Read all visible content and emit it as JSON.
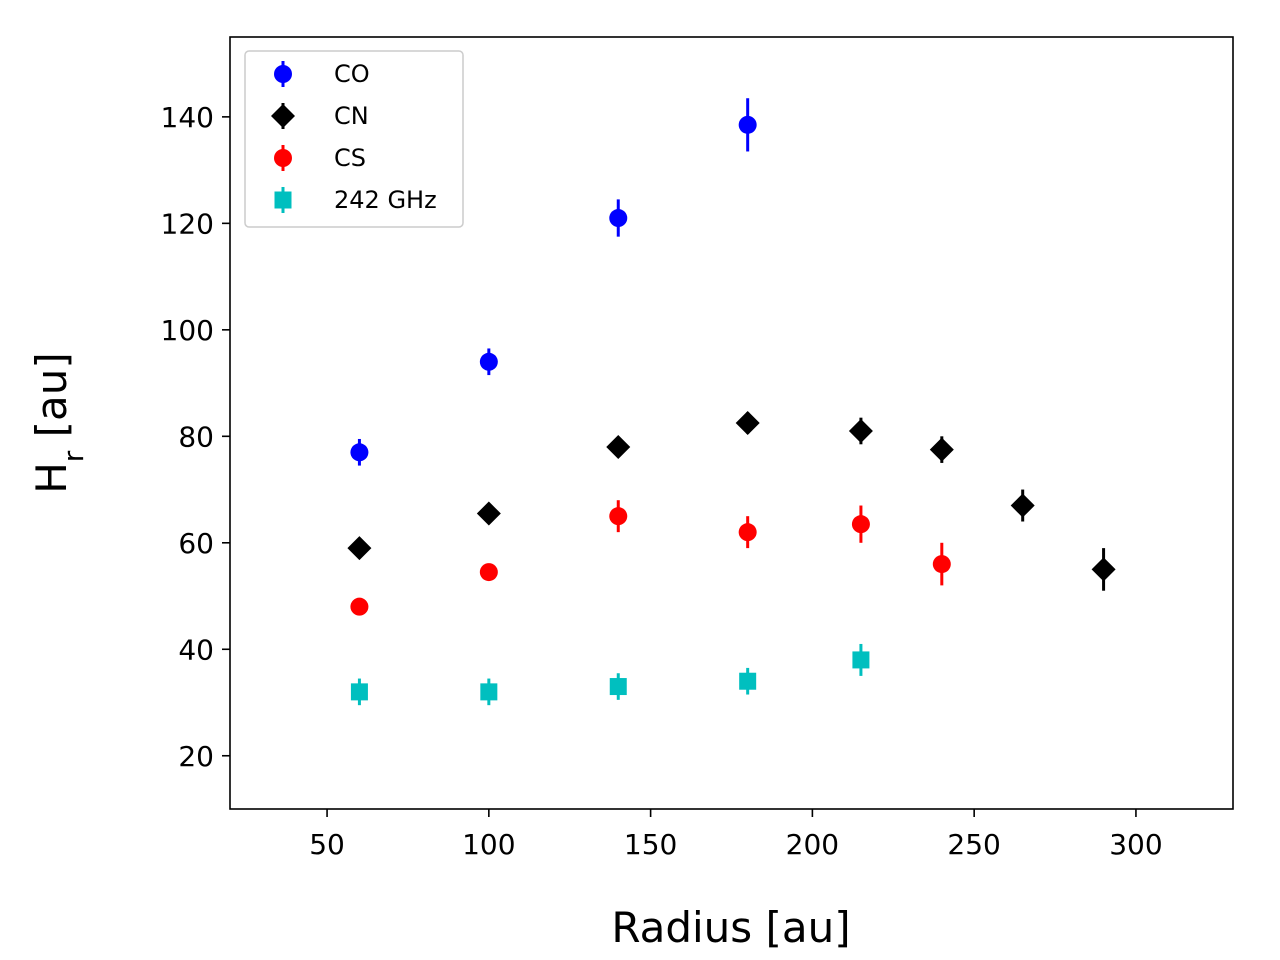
{
  "chart_data": {
    "type": "scatter",
    "title": "",
    "xlabel": "Radius [au]",
    "ylabel_main": "H",
    "ylabel_sub": "r",
    "ylabel_rest": " [au]",
    "xlim": [
      20,
      330
    ],
    "ylim": [
      10,
      155
    ],
    "xticks": [
      50,
      100,
      150,
      200,
      250,
      300
    ],
    "yticks": [
      20,
      40,
      60,
      80,
      100,
      120,
      140
    ],
    "grid": false,
    "legend_position": "upper-left",
    "series": [
      {
        "name": "CO",
        "color": "#0000ff",
        "marker": "circle",
        "points": [
          {
            "x": 60,
            "y": 77,
            "err": 2.5
          },
          {
            "x": 100,
            "y": 94,
            "err": 2.5
          },
          {
            "x": 140,
            "y": 121,
            "err": 3.5
          },
          {
            "x": 180,
            "y": 138.5,
            "err": 5
          }
        ]
      },
      {
        "name": "CN",
        "color": "#000000",
        "marker": "diamond",
        "points": [
          {
            "x": 60,
            "y": 59,
            "err": 1
          },
          {
            "x": 100,
            "y": 65.5,
            "err": 1
          },
          {
            "x": 140,
            "y": 78,
            "err": 1
          },
          {
            "x": 180,
            "y": 82.5,
            "err": 2
          },
          {
            "x": 215,
            "y": 81,
            "err": 2.5
          },
          {
            "x": 240,
            "y": 77.5,
            "err": 2.5
          },
          {
            "x": 265,
            "y": 67,
            "err": 3
          },
          {
            "x": 290,
            "y": 55,
            "err": 4
          }
        ]
      },
      {
        "name": "CS",
        "color": "#ff0000",
        "marker": "circle",
        "points": [
          {
            "x": 60,
            "y": 48,
            "err": 0.8
          },
          {
            "x": 100,
            "y": 54.5,
            "err": 0.8
          },
          {
            "x": 140,
            "y": 65,
            "err": 3
          },
          {
            "x": 180,
            "y": 62,
            "err": 3
          },
          {
            "x": 215,
            "y": 63.5,
            "err": 3.5
          },
          {
            "x": 240,
            "y": 56,
            "err": 4
          }
        ]
      },
      {
        "name": "242 GHz",
        "color": "#00bfbf",
        "marker": "square",
        "points": [
          {
            "x": 60,
            "y": 32,
            "err": 2.5
          },
          {
            "x": 100,
            "y": 32,
            "err": 2.5
          },
          {
            "x": 140,
            "y": 33,
            "err": 2.5
          },
          {
            "x": 180,
            "y": 34,
            "err": 2.5
          },
          {
            "x": 215,
            "y": 38,
            "err": 3
          }
        ]
      }
    ]
  }
}
